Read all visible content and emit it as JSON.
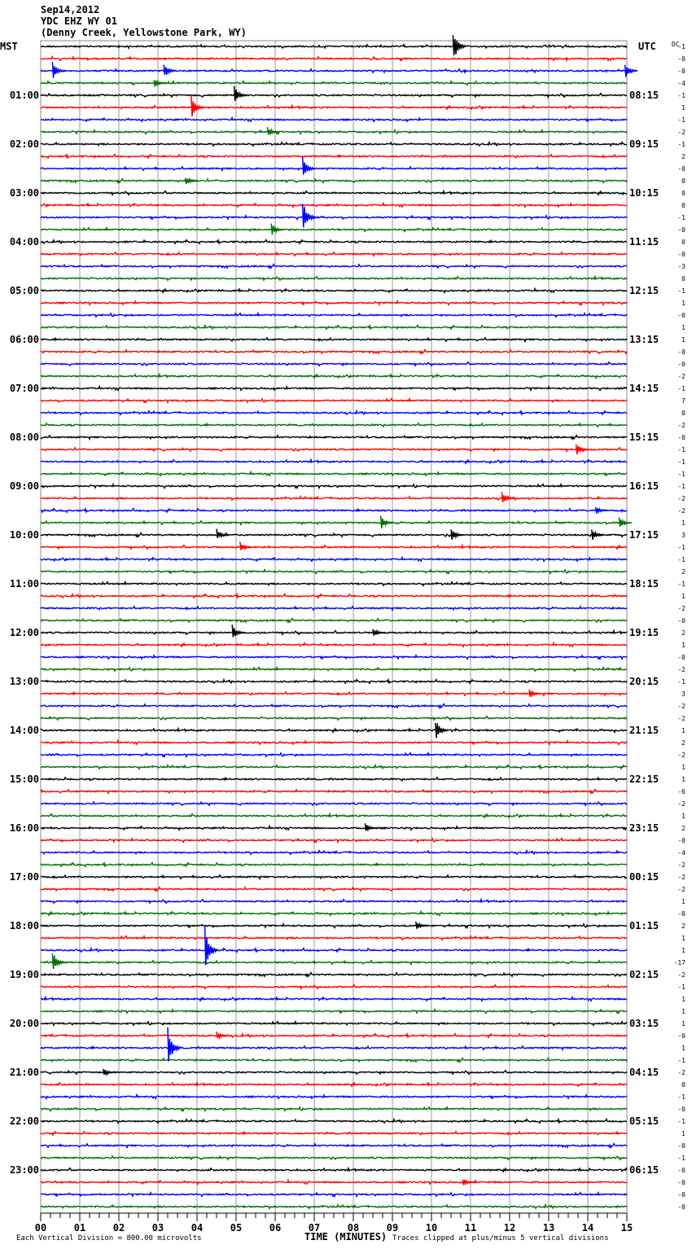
{
  "header": {
    "date": "Sep14,2012",
    "station": "YDC EHZ WY 01",
    "location": "(Denny Creek, Yellowstone Park, WY)"
  },
  "chart_data": {
    "type": "line",
    "title": "YDC EHZ WY 01 helicorder",
    "xlabel": "TIME (MINUTES)",
    "x_ticks": [
      "00",
      "01",
      "02",
      "03",
      "04",
      "05",
      "06",
      "07",
      "08",
      "09",
      "10",
      "11",
      "12",
      "13",
      "14",
      "15"
    ],
    "xlim": [
      0,
      15
    ],
    "left_axis_title": "MST",
    "right_axis_title": "UTC",
    "dc_title": "DC",
    "left_labels": [
      "01:00",
      "02:00",
      "03:00",
      "04:00",
      "05:00",
      "06:00",
      "07:00",
      "08:00",
      "09:00",
      "10:00",
      "11:00",
      "12:00",
      "13:00",
      "14:00",
      "15:00",
      "16:00",
      "17:00",
      "18:00",
      "19:00",
      "20:00",
      "21:00",
      "22:00",
      "23:00"
    ],
    "right_labels": [
      "08:15",
      "09:15",
      "10:15",
      "11:15",
      "12:15",
      "13:15",
      "14:15",
      "15:15",
      "16:15",
      "17:15",
      "18:15",
      "19:15",
      "20:15",
      "21:15",
      "22:15",
      "23:15",
      "00:15",
      "01:15",
      "02:15",
      "03:15",
      "04:15",
      "05:15",
      "06:15"
    ],
    "trace_colors": [
      "#000000",
      "#ff0000",
      "#0000ff",
      "#007000"
    ],
    "dc_offsets": [
      "-1",
      "-0",
      "-0",
      "-4",
      "-1",
      "1",
      "-1",
      "-2",
      "-1",
      "2",
      "-0",
      "0",
      "0",
      "0",
      "-1",
      "-0",
      "0",
      "-0",
      "-3",
      "0",
      "-1",
      "1",
      "-0",
      "1",
      "1",
      "-0",
      "-0",
      "-2",
      "-1",
      "7",
      "0",
      "-2",
      "-0",
      "-1",
      "-1",
      "-1",
      "-1",
      "-2",
      "-2",
      "1",
      "3",
      "-1",
      "-1",
      "2",
      "-1",
      "1",
      "-2",
      "-0",
      "2",
      "1",
      "-0",
      "-2",
      "-1",
      "3",
      "-2",
      "-2",
      "1",
      "2",
      "-2",
      "1",
      "1",
      "-6",
      "-2",
      "1",
      "2",
      "-0",
      "-4",
      "-2",
      "-2",
      "-2",
      "1",
      "-0",
      "2",
      "1",
      "1",
      "-17",
      "-2",
      "-1",
      "1",
      "1",
      "1",
      "-0",
      "1",
      "-1",
      "-2",
      "0",
      "-1",
      "-0",
      "-1",
      "1",
      "-0",
      "-1",
      "-0",
      "-0",
      "-0",
      "-0"
    ],
    "events": [
      {
        "trace": 0,
        "minute": 10.55,
        "amp": 22
      },
      {
        "trace": 2,
        "minute": 0.3,
        "amp": 12
      },
      {
        "trace": 2,
        "minute": 3.15,
        "amp": 10
      },
      {
        "trace": 2,
        "minute": 14.95,
        "amp": 10
      },
      {
        "trace": 3,
        "minute": 2.9,
        "amp": 6
      },
      {
        "trace": 4,
        "minute": 4.95,
        "amp": 12
      },
      {
        "trace": 5,
        "minute": 3.85,
        "amp": 16
      },
      {
        "trace": 7,
        "minute": 5.8,
        "amp": 7
      },
      {
        "trace": 10,
        "minute": 6.7,
        "amp": 14
      },
      {
        "trace": 11,
        "minute": 3.7,
        "amp": 6
      },
      {
        "trace": 14,
        "minute": 6.7,
        "amp": 22
      },
      {
        "trace": 15,
        "minute": 5.9,
        "amp": 8
      },
      {
        "trace": 33,
        "minute": 13.7,
        "amp": 8
      },
      {
        "trace": 37,
        "minute": 11.8,
        "amp": 8
      },
      {
        "trace": 38,
        "minute": 14.2,
        "amp": 6
      },
      {
        "trace": 39,
        "minute": 8.7,
        "amp": 9
      },
      {
        "trace": 39,
        "minute": 14.8,
        "amp": 7
      },
      {
        "trace": 40,
        "minute": 4.5,
        "amp": 8
      },
      {
        "trace": 40,
        "minute": 10.5,
        "amp": 8
      },
      {
        "trace": 40,
        "minute": 14.1,
        "amp": 8
      },
      {
        "trace": 41,
        "minute": 5.1,
        "amp": 7
      },
      {
        "trace": 48,
        "minute": 4.9,
        "amp": 10
      },
      {
        "trace": 48,
        "minute": 8.5,
        "amp": 6
      },
      {
        "trace": 53,
        "minute": 12.5,
        "amp": 6
      },
      {
        "trace": 56,
        "minute": 10.1,
        "amp": 14
      },
      {
        "trace": 64,
        "minute": 8.3,
        "amp": 6
      },
      {
        "trace": 72,
        "minute": 9.6,
        "amp": 6
      },
      {
        "trace": 74,
        "minute": 4.2,
        "amp": 30
      },
      {
        "trace": 75,
        "minute": 0.3,
        "amp": 14
      },
      {
        "trace": 82,
        "minute": 3.25,
        "amp": 30
      },
      {
        "trace": 81,
        "minute": 4.5,
        "amp": 6
      },
      {
        "trace": 84,
        "minute": 1.6,
        "amp": 5
      },
      {
        "trace": 93,
        "minute": 10.8,
        "amp": 5
      }
    ],
    "footer_left": "Each Vertical Division =  800.00 microvolts",
    "footer_right": "Traces clipped at plus/minus 5 vertical divisions"
  }
}
